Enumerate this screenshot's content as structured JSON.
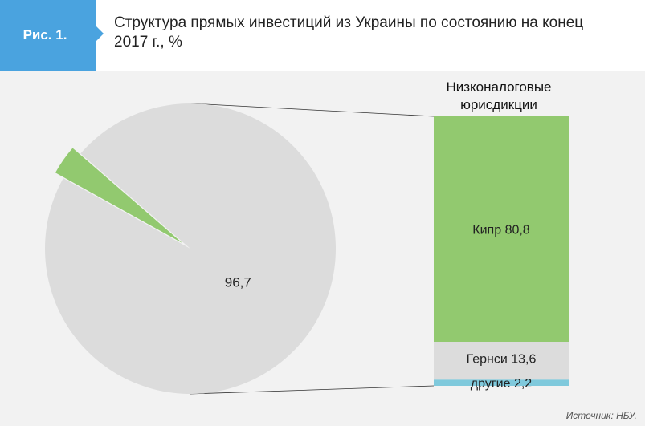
{
  "header": {
    "figure_label": "Рис. 1.",
    "title": "Структура прямых инвестиций из Украины по состоянию на конец 2017 г., %"
  },
  "chart_data": {
    "type": "pie",
    "pie": {
      "slices": [
        {
          "label": "96,7",
          "value": 96.7,
          "color": "#dcdcdc",
          "exploded": false
        },
        {
          "label": "",
          "value": 3.3,
          "color": "#92c96f",
          "exploded": true
        }
      ]
    },
    "breakdown_bar": {
      "title": "Низконалоговые юрисдикции",
      "title_lines": [
        "Низконалоговые",
        "юрисдикции"
      ],
      "segments": [
        {
          "name": "Кипр",
          "label": "Кипр 80,8",
          "value": 80.8,
          "color": "#92c96f"
        },
        {
          "name": "Гернси",
          "label": "Гернси 13,6",
          "value": 13.6,
          "color": "#dcdcdc"
        },
        {
          "name": "другие",
          "label": "другие 2,2",
          "value": 2.2,
          "color": "#7fc9dc"
        }
      ]
    },
    "source": "Источник: НБУ."
  }
}
